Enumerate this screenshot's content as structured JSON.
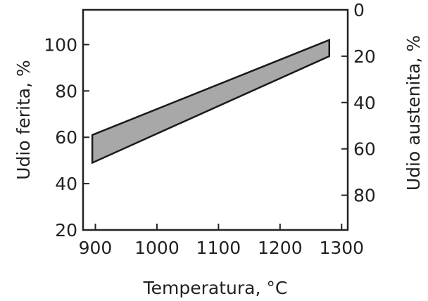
{
  "chart_data": {
    "type": "area",
    "title": "",
    "xlabel": "Temperatura, °C",
    "ylabel": "Udio ferita, %",
    "y2label": "Udio austenita, %",
    "xlim": [
      880,
      1310
    ],
    "ylim": [
      20,
      115
    ],
    "y2lim": [
      95,
      0
    ],
    "x_ticks": [
      "900",
      "1000",
      "1100",
      "1200",
      "1300"
    ],
    "y_ticks": [
      "20",
      "40",
      "60",
      "80",
      "100"
    ],
    "y2_ticks": [
      "0",
      "20",
      "40",
      "60",
      "80"
    ],
    "grid": false,
    "series": [
      {
        "x": [
          895,
          1280
        ],
        "upper": [
          61,
          102
        ],
        "lower": [
          49,
          95
        ],
        "fill": "#a8a8a8"
      }
    ]
  }
}
